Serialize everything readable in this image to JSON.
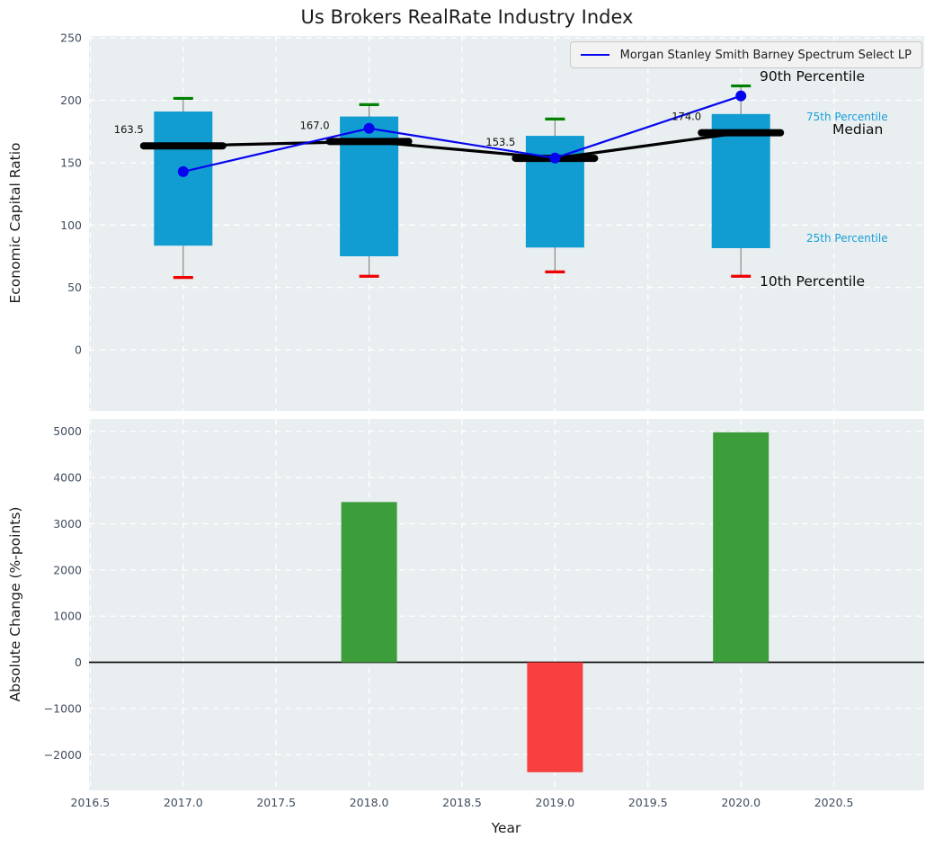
{
  "title": "Us Brokers RealRate Industry Index",
  "colors": {
    "axes_bg": "#e9eef0",
    "grid": "#ffffff",
    "box_fill": "#119dd1",
    "whisker": "#888888",
    "cap_top": "#008000",
    "cap_bottom": "#ee0000",
    "median": "#000000",
    "series_line": "#0404f0",
    "bar_up": "#3b9e3b",
    "bar_down": "#f94040",
    "tick_text": "#3f4d5e",
    "annotation_text": "#111111",
    "zero_line": "#000000",
    "pct_label_accent": "#179fd9"
  },
  "chart_data": [
    {
      "type": "box-line",
      "title": "Us Brokers RealRate Industry Index",
      "xlabel": "",
      "ylabel": "Economic Capital Ratio",
      "x": [
        2017,
        2018,
        2019,
        2020
      ],
      "box": {
        "p10": [
          58,
          59,
          62.5,
          59
        ],
        "p25": [
          83.5,
          75,
          82,
          81.5
        ],
        "median": [
          163.5,
          167.0,
          153.5,
          174.0
        ],
        "p75": [
          191,
          187,
          171.5,
          189
        ],
        "p90": [
          201.5,
          196.5,
          185,
          211.5
        ]
      },
      "series": [
        {
          "name": "Morgan Stanley Smith Barney Spectrum Select LP",
          "values": [
            142.8,
            177.5,
            153.7,
            203.5
          ]
        }
      ],
      "median_labels": [
        "163.5",
        "167.0",
        "153.5",
        "174.0"
      ],
      "pct_labels": {
        "p90": "90th Percentile",
        "p75": "75th Percentile",
        "median": "Median",
        "p25": "25th Percentile",
        "p10": "10th Percentile"
      },
      "yticks": [
        0,
        50,
        100,
        150,
        200,
        250
      ],
      "ytick_labels": [
        "0",
        "50",
        "100",
        "150",
        "200",
        "250"
      ],
      "ylim": [
        -49,
        251.4
      ],
      "xlim": [
        2016.49,
        2020.99
      ],
      "grid": true,
      "legend_position": "upper right"
    },
    {
      "type": "bar",
      "title": "",
      "xlabel": "Year",
      "ylabel": "Absolute Change (%-points)",
      "x": [
        2018,
        2019,
        2020
      ],
      "values": [
        3470,
        -2380,
        4980
      ],
      "yticks": [
        -2000,
        -1000,
        0,
        1000,
        2000,
        3000,
        4000,
        5000
      ],
      "ytick_labels": [
        "−2000",
        "−1000",
        "0",
        "1000",
        "2000",
        "3000",
        "4000",
        "5000"
      ],
      "xticks": [
        2016.5,
        2017.0,
        2017.5,
        2018.0,
        2018.5,
        2019.0,
        2019.5,
        2020.0,
        2020.5
      ],
      "xtick_labels": [
        "2016.5",
        "2017.0",
        "2017.5",
        "2018.0",
        "2018.5",
        "2019.0",
        "2019.5",
        "2020.0",
        "2020.5"
      ],
      "ylim": [
        -2760,
        5270
      ],
      "xlim": [
        2016.49,
        2020.99
      ],
      "grid": true
    }
  ]
}
